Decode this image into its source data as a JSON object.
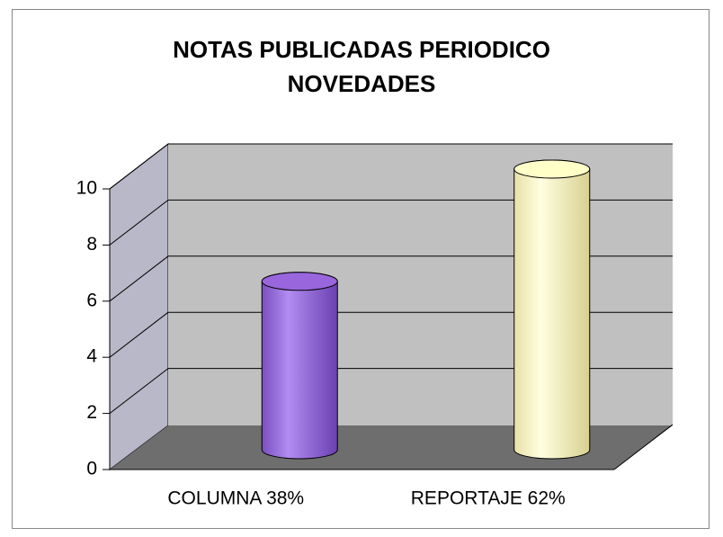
{
  "chart_data": {
    "type": "bar",
    "title": "NOTAS PUBLICADAS PERIODICO NOVEDADES",
    "categories": [
      "COLUMNA 38%",
      "REPORTAJE 62%"
    ],
    "values": [
      6,
      10
    ],
    "colors": [
      "#9966dd",
      "#ffffc8"
    ],
    "ylim": [
      0,
      10
    ],
    "yticks": [
      0,
      2,
      4,
      6,
      8,
      10
    ],
    "grid": true
  }
}
